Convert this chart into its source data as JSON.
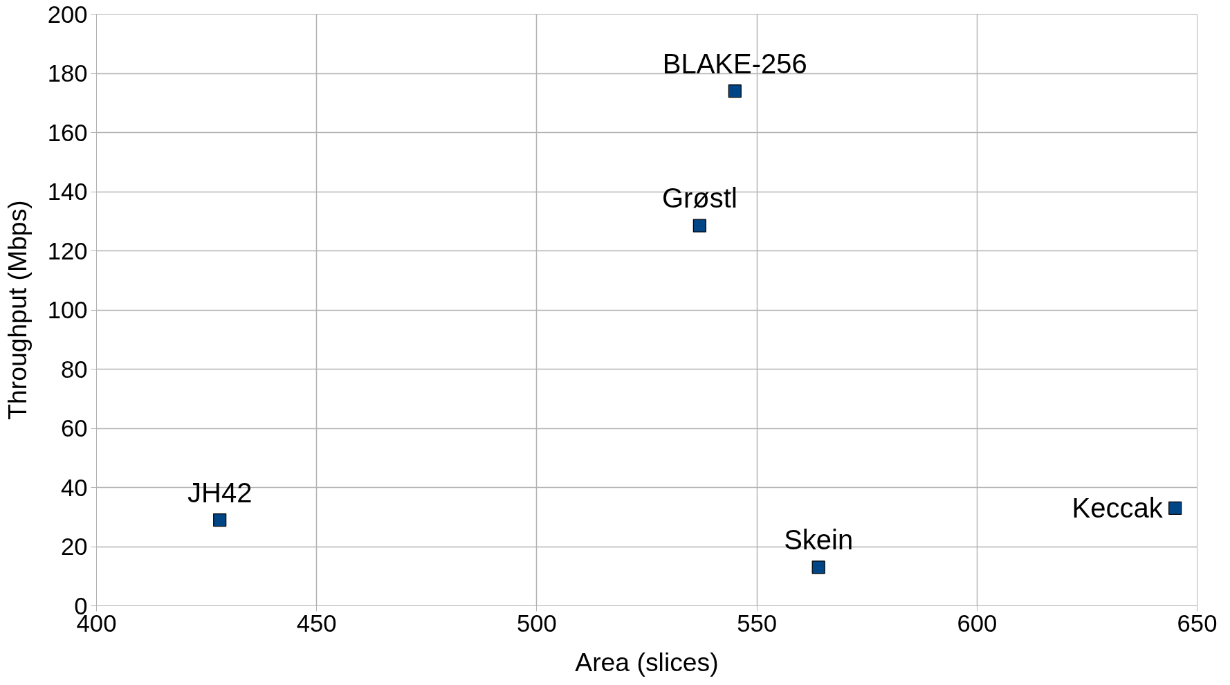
{
  "chart_data": {
    "type": "scatter",
    "xlabel": "Area (slices)",
    "ylabel": "Throughput (Mbps)",
    "x": [
      428,
      545,
      537,
      564,
      645
    ],
    "series": [
      {
        "color": "#004586",
        "values": [
          29,
          174,
          128.5,
          13,
          33
        ]
      }
    ],
    "annotations": [
      {
        "text": "JH42",
        "x": 428,
        "y": 29
      },
      {
        "text": "BLAKE-256",
        "x": 545,
        "y": 174
      },
      {
        "text": "Grøstl",
        "x": 537,
        "y": 128.5
      },
      {
        "text": "Skein",
        "x": 564,
        "y": 13
      },
      {
        "text": "Keccak",
        "x": 645,
        "y": 33
      }
    ],
    "xlim": [
      400,
      650
    ],
    "ylim": [
      0,
      200
    ],
    "xticks": [
      400,
      450,
      500,
      550,
      600,
      650
    ],
    "yticks": [
      0,
      20,
      40,
      60,
      80,
      100,
      120,
      140,
      160,
      180,
      200
    ],
    "grid": true,
    "marker": "square"
  }
}
